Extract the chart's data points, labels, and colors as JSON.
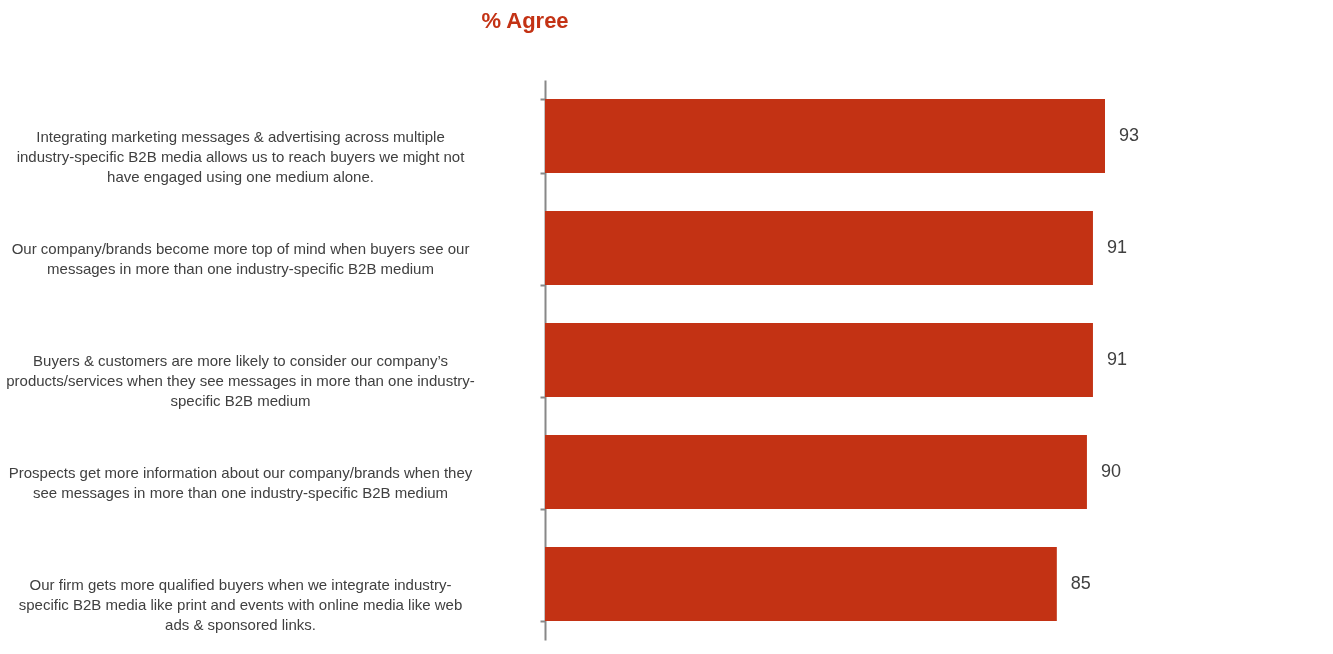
{
  "chart_data": {
    "type": "bar",
    "orientation": "horizontal",
    "title": "% Agree",
    "categories": [
      "Integrating marketing messages & advertising across multiple industry-specific B2B media allows us to reach buyers we might not have engaged using one medium alone.",
      "Our company/brands become more top of mind when buyers see our messages in more than one industry-specific B2B medium",
      "Buyers & customers are more likely to consider our company’s products/services when they see messages in more than one industry-specific B2B medium",
      "Prospects get more information about our company/brands when they see messages in more than one industry-specific B2B medium",
      "Our firm gets more qualified buyers when we integrate industry-specific B2B media like print and events with online media like web ads & sponsored links."
    ],
    "values": [
      93,
      91,
      91,
      90,
      85
    ],
    "color": "#c33214",
    "tick_labels": "y",
    "data_labels": true
  }
}
